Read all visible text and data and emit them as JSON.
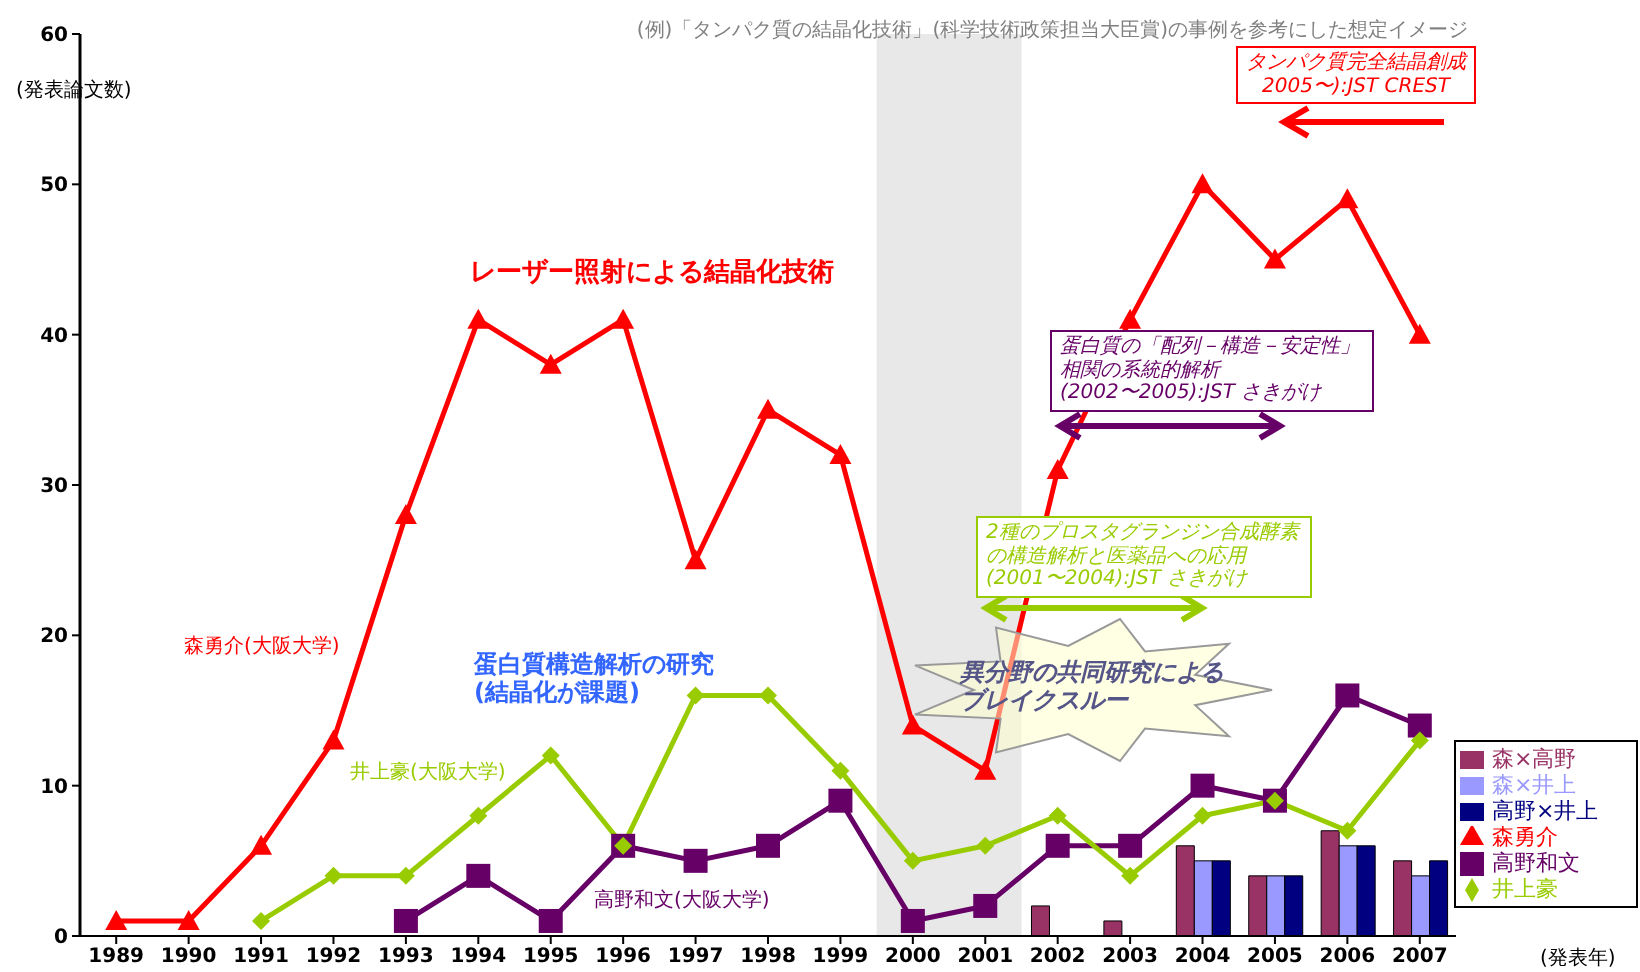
{
  "chart_data": {
    "type": "line",
    "title": "(例)「タンパク質の結晶化技術」(科学技術政策担当大臣賞)の事例を参考にした想定イメージ",
    "ylabel": "(発表論文数)",
    "xlabel": "(発表年)",
    "categories": [
      "1989",
      "1990",
      "1991",
      "1992",
      "1993",
      "1994",
      "1995",
      "1996",
      "1997",
      "1998",
      "1999",
      "2000",
      "2001",
      "2002",
      "2003",
      "2004",
      "2005",
      "2006",
      "2007"
    ],
    "series": [
      {
        "name": "森×高野",
        "type": "bar",
        "color": "#993366",
        "values": [
          null,
          null,
          null,
          null,
          null,
          null,
          null,
          null,
          null,
          null,
          null,
          null,
          null,
          2,
          1,
          6,
          4,
          7,
          5
        ]
      },
      {
        "name": "森×井上",
        "type": "bar",
        "color": "#9999ff",
        "values": [
          null,
          null,
          null,
          null,
          null,
          null,
          null,
          null,
          null,
          null,
          null,
          null,
          null,
          null,
          null,
          5,
          4,
          6,
          4
        ]
      },
      {
        "name": "高野×井上",
        "type": "bar",
        "color": "#000080",
        "values": [
          null,
          null,
          null,
          null,
          null,
          null,
          null,
          null,
          null,
          null,
          null,
          null,
          null,
          null,
          null,
          5,
          4,
          6,
          5
        ]
      },
      {
        "name": "森勇介",
        "marker": "triangle",
        "color": "#ff0000",
        "values": [
          1,
          1,
          6,
          13,
          28,
          41,
          38,
          41,
          25,
          35,
          32,
          14,
          11,
          31,
          41,
          50,
          45,
          49,
          40
        ]
      },
      {
        "name": "高野和文",
        "marker": "square",
        "color": "#660066",
        "values": [
          null,
          null,
          null,
          null,
          1,
          4,
          1,
          6,
          5,
          6,
          9,
          1,
          2,
          6,
          6,
          10,
          9,
          16,
          14
        ]
      },
      {
        "name": "井上豪",
        "marker": "diamond",
        "color": "#99cc00",
        "values": [
          null,
          null,
          1,
          4,
          4,
          8,
          12,
          6,
          16,
          16,
          11,
          5,
          6,
          8,
          4,
          8,
          9,
          7,
          13
        ]
      }
    ],
    "ylim": [
      0,
      60
    ],
    "yticks": [
      0,
      10,
      20,
      30,
      40,
      50,
      60
    ],
    "legend": "bottom right",
    "bands": [
      {
        "axis": "x",
        "from": "2000",
        "to": "2001",
        "color": "#e8e8e8"
      }
    ],
    "annotations": [
      "レーザー照射による結晶化技術",
      "森勇介(大阪大学)",
      "蛋白質構造解析の研究\n(結晶化が課題)",
      "井上豪(大阪大学)",
      "高野和文(大阪大学)",
      "タンパク質完全結晶創成\n2005〜):JST CREST",
      "蛋白質の「配列－構造－安定性」相関の系統的解析\n(2002〜2005):JST さきがけ",
      "2種のプロスタグランジン合成酵素の構造解析と医薬品への応用\n(2001〜2004):JST さきがけ",
      "異分野の共同研究によるブレイクスルー"
    ]
  }
}
